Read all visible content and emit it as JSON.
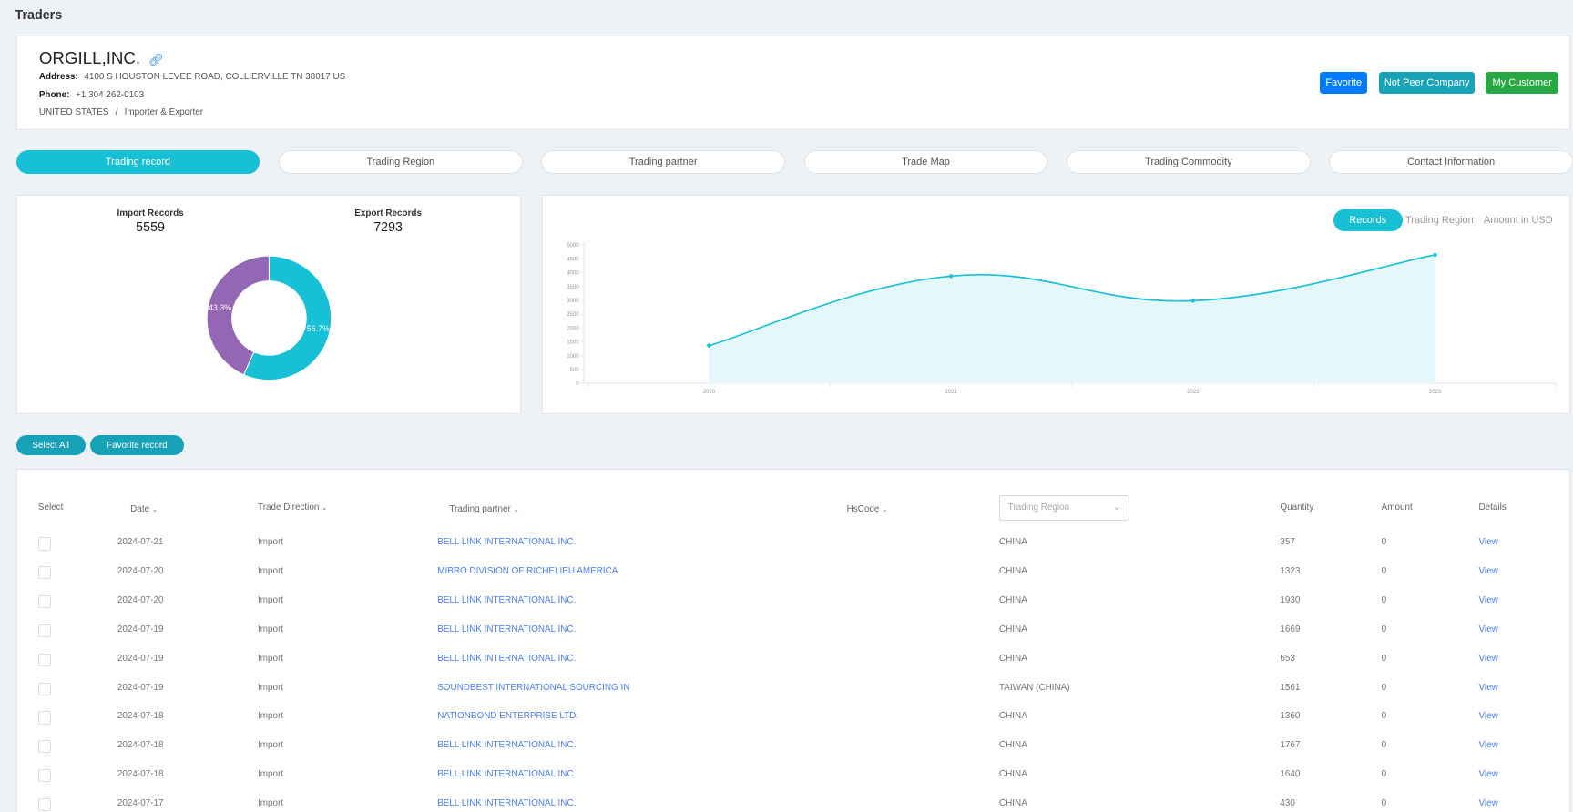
{
  "page_title": "Traders",
  "company": {
    "name": "ORGILL,INC.",
    "address_label": "Address:",
    "address": "4100 S HOUSTON LEVEE ROAD, COLLIERVILLE TN 38017 US",
    "phone_label": "Phone:",
    "phone": "+1 304 262-0103",
    "country": "UNITED STATES",
    "separator": "/",
    "role": "Importer & Exporter",
    "icon": "link-icon"
  },
  "actions": {
    "favorite": "Favorite",
    "not_peer": "Not Peer Company",
    "my_customer": "My Customer",
    "colors": {
      "favorite": "#007bff",
      "not_peer": "#17a2b8",
      "my_customer": "#28a745"
    }
  },
  "tabs": [
    {
      "label": "Trading record",
      "active": true
    },
    {
      "label": "Trading Region",
      "active": false
    },
    {
      "label": "Trading partner",
      "active": false
    },
    {
      "label": "Trade Map",
      "active": false
    },
    {
      "label": "Trading Commodity",
      "active": false
    },
    {
      "label": "Contact Information",
      "active": false
    }
  ],
  "summary": {
    "import_label": "Import Records",
    "import_value": "5559",
    "export_label": "Export Records",
    "export_value": "7293"
  },
  "chart_data": [
    {
      "type": "pie",
      "donut": true,
      "slices": [
        {
          "label": "56.7%",
          "value": 56.7,
          "color": "#18c0d6"
        },
        {
          "label": "43.3%",
          "value": 43.3,
          "color": "#9467b4"
        }
      ]
    },
    {
      "type": "area",
      "categories": [
        "2020",
        "2021",
        "2022",
        "2023"
      ],
      "values": [
        1360,
        3870,
        2980,
        4640
      ],
      "ylim": [
        0,
        5000
      ],
      "yticks": [
        "0",
        "500",
        "1000",
        "1500",
        "2000",
        "2500",
        "3000",
        "3500",
        "4000",
        "4500",
        "5000"
      ],
      "color": "#18c0d6",
      "fill": "#e4f7fb",
      "smooth": true
    }
  ],
  "chart_modes": [
    {
      "label": "Records",
      "active": true
    },
    {
      "label": "Trading Region",
      "active": false
    },
    {
      "label": "Amount in USD",
      "active": false
    }
  ],
  "buttons": {
    "select_all": "Select All",
    "favorite_record": "Favorite record"
  },
  "table": {
    "headers": {
      "select": "Select",
      "date": "Date",
      "direction": "Trade Direction",
      "partner": "Trading partner",
      "hscode": "HsCode",
      "region_placeholder": "Trading Region",
      "quantity": "Quantity",
      "amount": "Amount",
      "details": "Details"
    },
    "sort_icon": "chevron-down-icon",
    "rows": [
      {
        "date": "2024-07-21",
        "direction": "Import",
        "partner": "BELL LINK INTERNATIONAL INC.",
        "region": "CHINA",
        "quantity": "357",
        "amount": "0",
        "details": "View"
      },
      {
        "date": "2024-07-20",
        "direction": "Import",
        "partner": "MIBRO DIVISION OF RICHELIEU AMERICA",
        "region": "CHINA",
        "quantity": "1323",
        "amount": "0",
        "details": "View"
      },
      {
        "date": "2024-07-20",
        "direction": "Import",
        "partner": "BELL LINK INTERNATIONAL INC.",
        "region": "CHINA",
        "quantity": "1930",
        "amount": "0",
        "details": "View"
      },
      {
        "date": "2024-07-19",
        "direction": "Import",
        "partner": "BELL LINK INTERNATIONAL INC.",
        "region": "CHINA",
        "quantity": "1669",
        "amount": "0",
        "details": "View"
      },
      {
        "date": "2024-07-19",
        "direction": "Import",
        "partner": "BELL LINK INTERNATIONAL INC.",
        "region": "CHINA",
        "quantity": "653",
        "amount": "0",
        "details": "View"
      },
      {
        "date": "2024-07-19",
        "direction": "Import",
        "partner": "SOUNDBEST INTERNATIONAL SOURCING IN",
        "region": "TAIWAN (CHINA)",
        "quantity": "1561",
        "amount": "0",
        "details": "View"
      },
      {
        "date": "2024-07-18",
        "direction": "Import",
        "partner": "NATIONBOND ENTERPRISE LTD.",
        "region": "CHINA",
        "quantity": "1360",
        "amount": "0",
        "details": "View"
      },
      {
        "date": "2024-07-18",
        "direction": "Import",
        "partner": "BELL LINK INTERNATIONAL INC.",
        "region": "CHINA",
        "quantity": "1767",
        "amount": "0",
        "details": "View"
      },
      {
        "date": "2024-07-18",
        "direction": "Import",
        "partner": "BELL LINK INTERNATIONAL INC.",
        "region": "CHINA",
        "quantity": "1640",
        "amount": "0",
        "details": "View"
      },
      {
        "date": "2024-07-17",
        "direction": "Import",
        "partner": "BELL LINK INTERNATIONAL INC.",
        "region": "CHINA",
        "quantity": "430",
        "amount": "0",
        "details": "View"
      }
    ]
  }
}
